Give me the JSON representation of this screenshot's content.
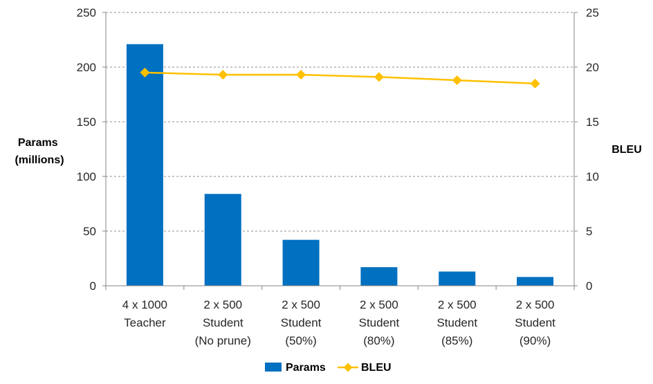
{
  "chart_data": {
    "type": "bar",
    "categories": [
      [
        "4 x 1000",
        "Teacher"
      ],
      [
        "2 x 500",
        "Student",
        "(No prune)"
      ],
      [
        "2 x 500",
        "Student",
        "(50%)"
      ],
      [
        "2 x 500",
        "Student",
        "(80%)"
      ],
      [
        "2 x 500",
        "Student",
        "(85%)"
      ],
      [
        "2 x 500",
        "Student",
        "(90%)"
      ]
    ],
    "series": [
      {
        "name": "Params",
        "type": "bar",
        "axis": "left",
        "color": "#0070C0",
        "values": [
          221,
          84,
          42,
          17,
          13,
          8
        ]
      },
      {
        "name": "BLEU",
        "type": "line",
        "axis": "right",
        "color": "#FFC000",
        "marker": "diamond",
        "values": [
          19.5,
          19.3,
          19.3,
          19.1,
          18.8,
          18.5
        ]
      }
    ],
    "ylabel_lines": [
      "Params",
      "(millions)"
    ],
    "y2label": "BLEU",
    "ylim": [
      0,
      250
    ],
    "y2lim": [
      0,
      25
    ],
    "yticks": [
      "0",
      "50",
      "100",
      "150",
      "200",
      "250"
    ],
    "y2ticks": [
      "0",
      "5",
      "10",
      "15",
      "20",
      "25"
    ],
    "grid": "horizontal-dashed",
    "legend_position": "bottom"
  }
}
